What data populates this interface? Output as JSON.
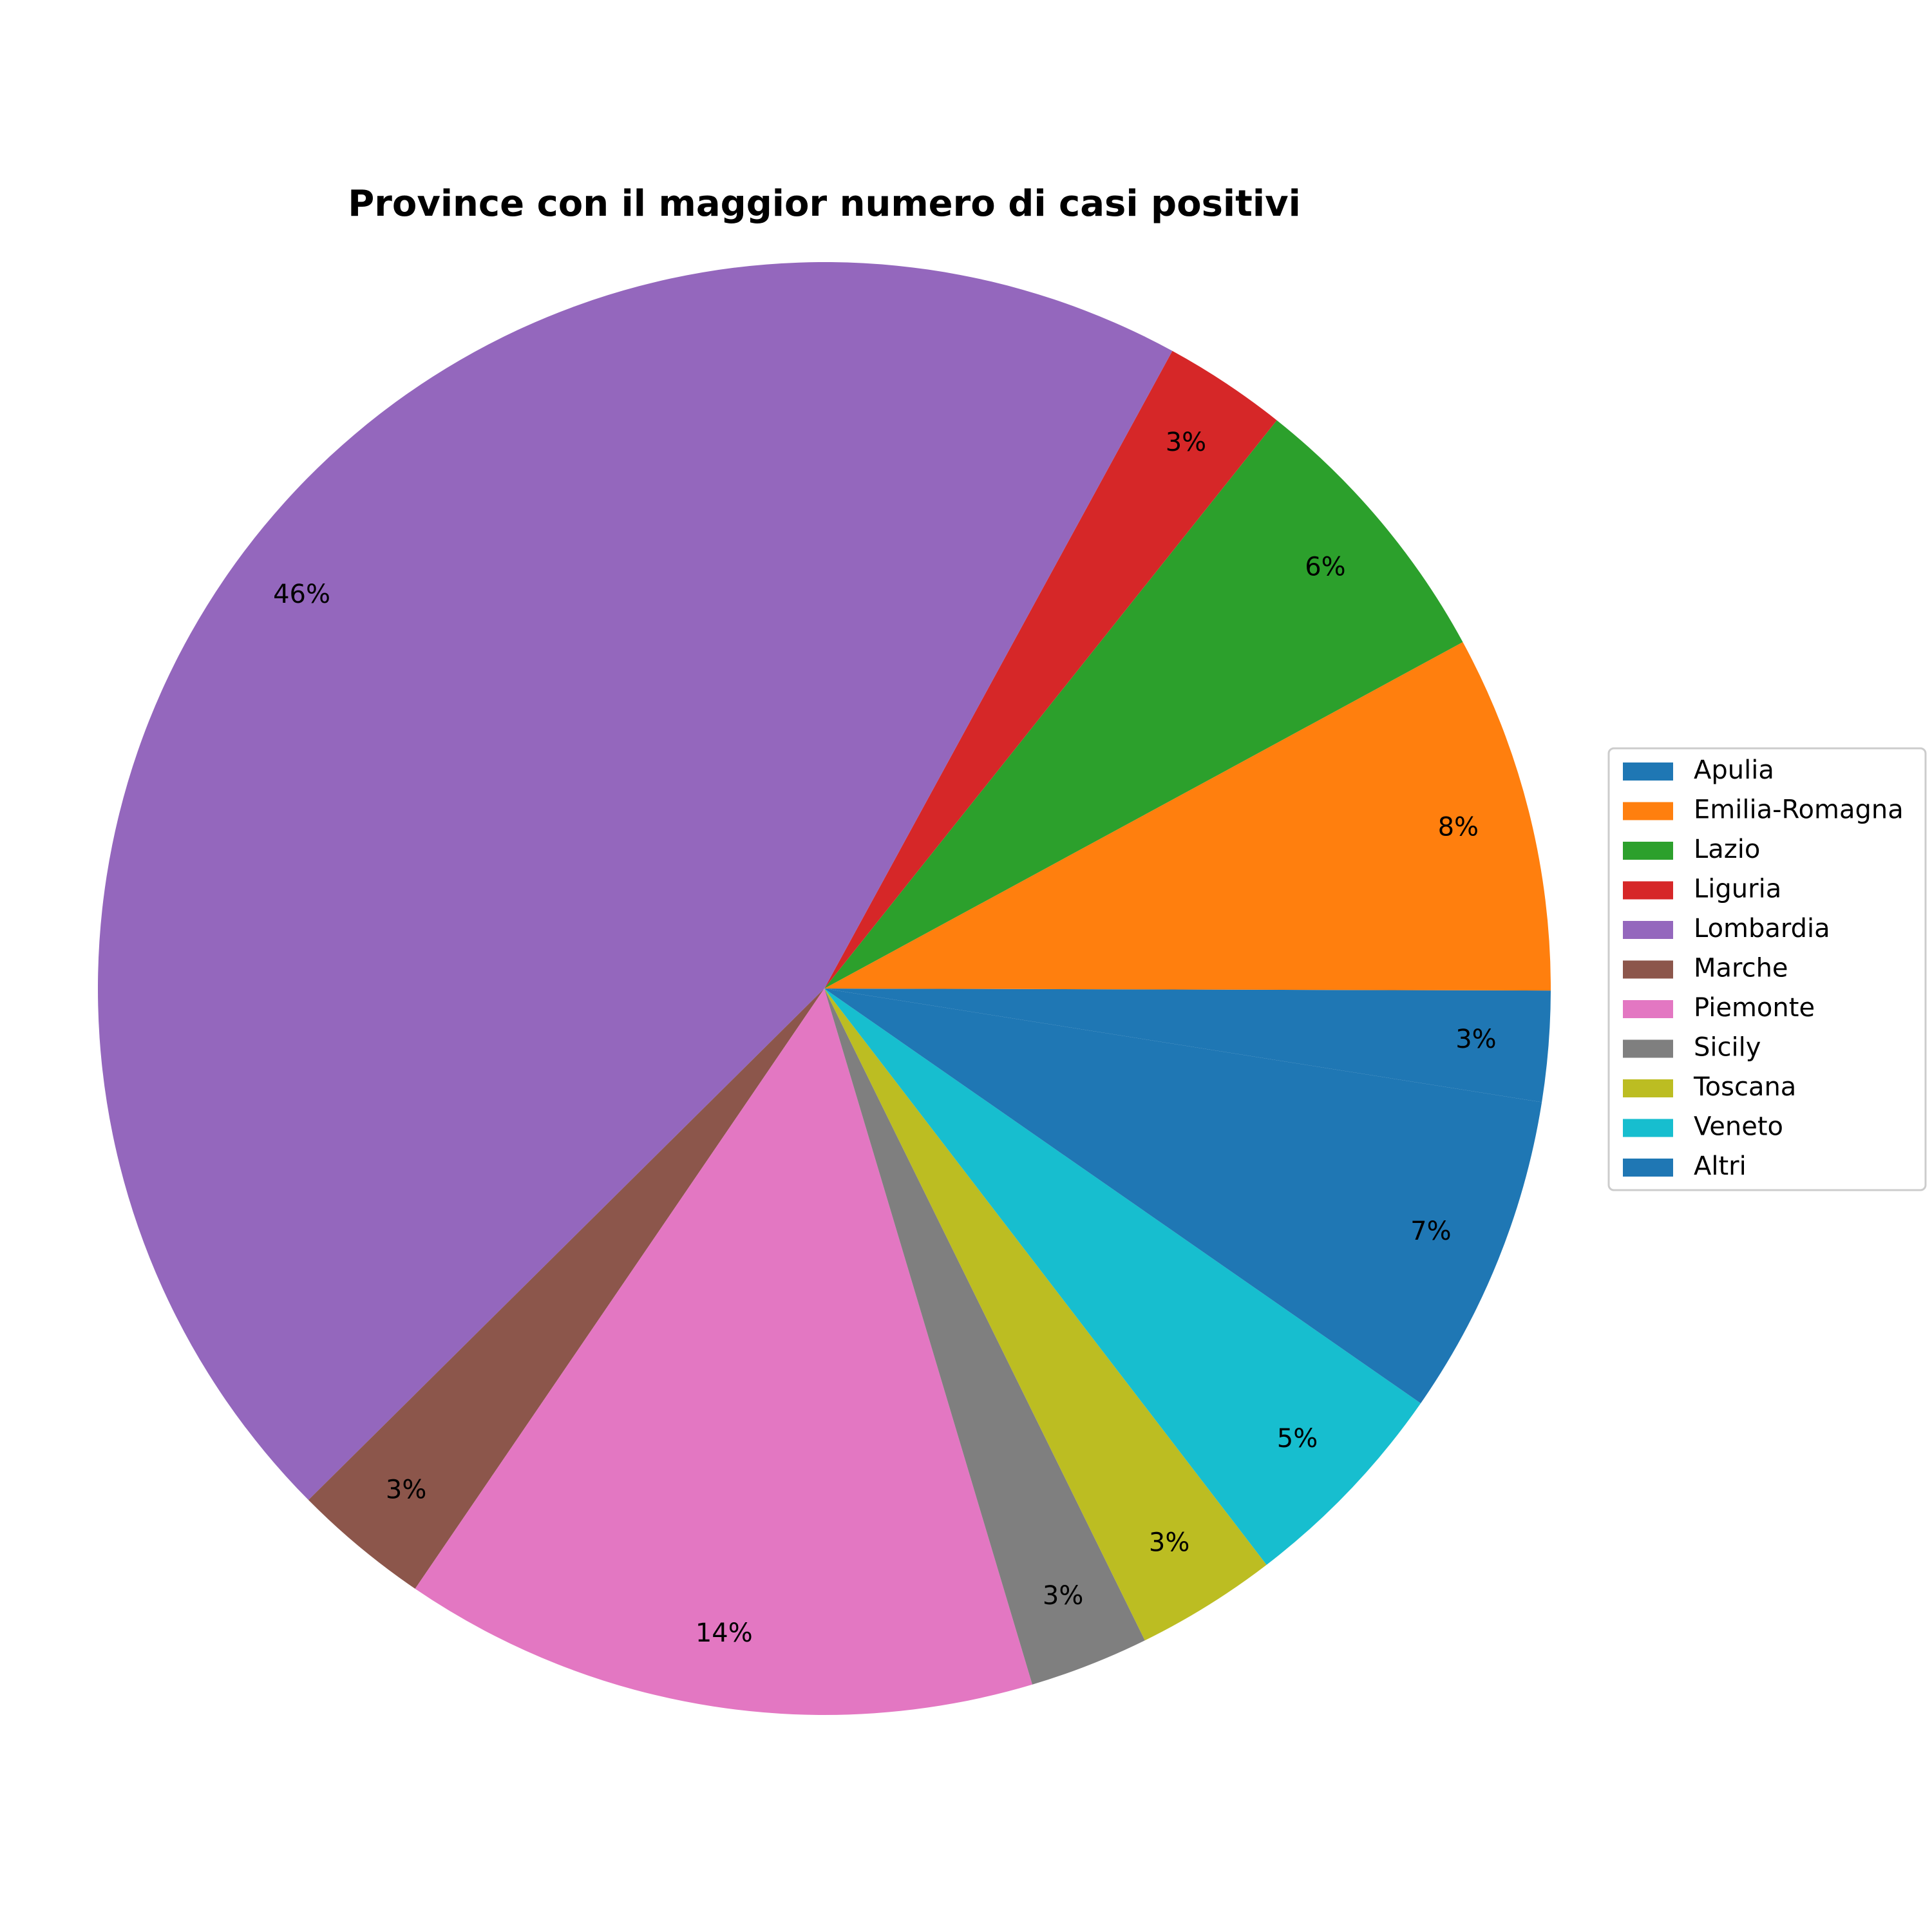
{
  "chart_data": {
    "type": "pie",
    "title": "Province con il maggior numero di casi positivi",
    "slices": [
      {
        "label": "Apulia",
        "value": 2.5,
        "pct_label": "3%",
        "color": "#1f77b4"
      },
      {
        "label": "Emilia-Romagna",
        "value": 8.1,
        "pct_label": "8%",
        "color": "#ff7f0e"
      },
      {
        "label": "Lazio",
        "value": 6.5,
        "pct_label": "6%",
        "color": "#2ca02c"
      },
      {
        "label": "Liguria",
        "value": 2.8,
        "pct_label": "3%",
        "color": "#d62728"
      },
      {
        "label": "Lombardia",
        "value": 46.2,
        "pct_label": "46%",
        "color": "#9467bd"
      },
      {
        "label": "Marche",
        "value": 3.1,
        "pct_label": "3%",
        "color": "#8c564b"
      },
      {
        "label": "Piemonte",
        "value": 14.4,
        "pct_label": "14%",
        "color": "#e377c2"
      },
      {
        "label": "Sicily",
        "value": 2.7,
        "pct_label": "3%",
        "color": "#7f7f7f"
      },
      {
        "label": "Toscana",
        "value": 3.2,
        "pct_label": "3%",
        "color": "#bcbd22"
      },
      {
        "label": "Veneto",
        "value": 5.0,
        "pct_label": "5%",
        "color": "#17becf"
      },
      {
        "label": "Altri",
        "value": 7.3,
        "pct_label": "7%",
        "color": "#1f77b4"
      }
    ],
    "legend_position": "right"
  }
}
